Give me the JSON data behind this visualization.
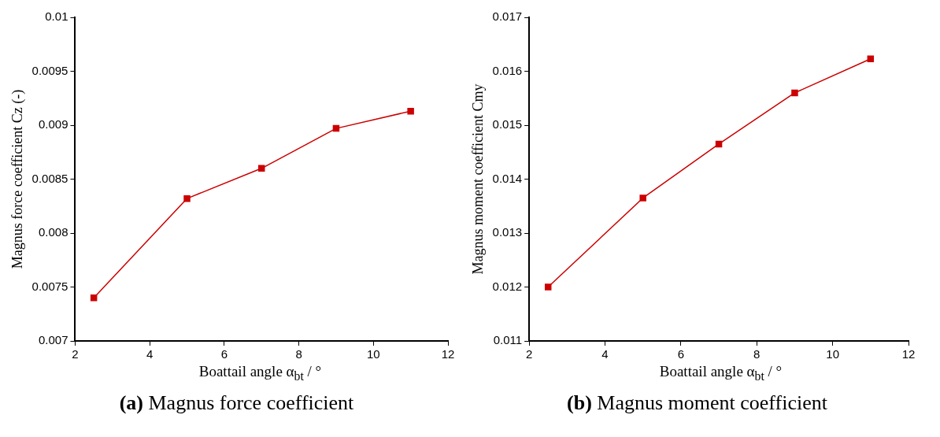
{
  "chart_data": [
    {
      "type": "line",
      "title": "(a) Magnus force coefficient",
      "xlabel": "Boattail angle α$_{bt}$ / °",
      "ylabel": "Magnus force coefficient Cz (-)",
      "x": [
        2.5,
        5,
        7,
        9,
        11
      ],
      "series": [
        {
          "color": "#cc0000",
          "values": [
            0.0074,
            0.00832,
            0.0086,
            0.00897,
            0.00913
          ]
        }
      ],
      "xlim": [
        2,
        12
      ],
      "xticks": [
        2,
        4,
        6,
        8,
        10,
        12
      ],
      "ylim": [
        0.007,
        0.01
      ],
      "yticks": [
        0.007,
        0.0075,
        0.008,
        0.0085,
        0.009,
        0.0095,
        0.01
      ],
      "grid": false,
      "legend": false,
      "marker": "square",
      "line_style": "solid"
    },
    {
      "type": "line",
      "title": "(b) Magnus moment coefficient",
      "xlabel": "Boattail angle α$_{bt}$ / °",
      "ylabel": "Magnus moment coefficient Cmy",
      "x": [
        2.5,
        5,
        7,
        9,
        11
      ],
      "series": [
        {
          "color": "#cc0000",
          "values": [
            0.012,
            0.01365,
            0.01465,
            0.0156,
            0.01623
          ]
        }
      ],
      "xlim": [
        2,
        12
      ],
      "xticks": [
        2,
        4,
        6,
        8,
        10,
        12
      ],
      "ylim": [
        0.011,
        0.017
      ],
      "yticks": [
        0.011,
        0.012,
        0.013,
        0.014,
        0.015,
        0.016,
        0.017
      ],
      "grid": false,
      "legend": false,
      "marker": "square",
      "line_style": "solid"
    }
  ]
}
